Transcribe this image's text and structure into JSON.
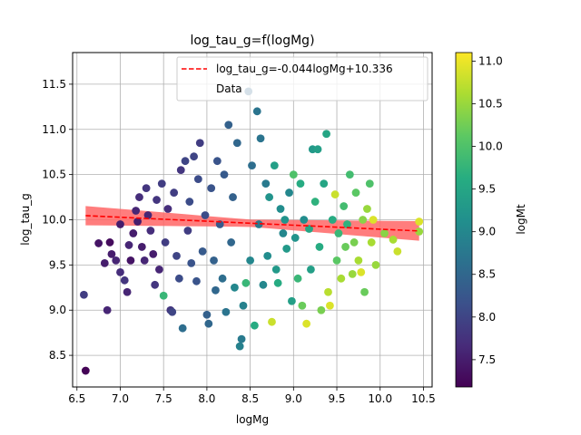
{
  "chart_data": {
    "type": "scatter",
    "title": "log_tau_g=f(logMg)",
    "xlabel": "logMg",
    "ylabel": "log_tau_g",
    "xlim": [
      6.45,
      10.6
    ],
    "ylim": [
      8.15,
      11.85
    ],
    "xticks": [
      "6.5",
      "7.0",
      "7.5",
      "8.0",
      "8.5",
      "9.0",
      "9.5",
      "10.0",
      "10.5"
    ],
    "yticks": [
      "8.5",
      "9.0",
      "9.5",
      "10.0",
      "10.5",
      "11.0",
      "11.5"
    ],
    "grid": true,
    "legend_position": "top-right",
    "fit_line": {
      "label": "log_tau_g=-0.044logMg+10.336",
      "slope": -0.044,
      "intercept": 10.336,
      "color": "#ff0000",
      "band_color": "#ff6666"
    },
    "scatter_label": "Data",
    "colorbar": {
      "label": "logMt",
      "min": 7.18,
      "max": 11.1,
      "ticks": [
        "7.5",
        "8.0",
        "8.5",
        "9.0",
        "9.5",
        "10.0",
        "10.5",
        "11.0"
      ],
      "colormap": "viridis"
    },
    "points": [
      [
        6.6,
        8.33,
        7.2
      ],
      [
        6.58,
        9.17,
        7.9
      ],
      [
        6.85,
        9.0,
        7.6
      ],
      [
        6.75,
        9.74,
        7.4
      ],
      [
        6.82,
        9.52,
        7.5
      ],
      [
        6.9,
        9.62,
        7.5
      ],
      [
        6.88,
        9.75,
        7.3
      ],
      [
        6.95,
        9.55,
        7.6
      ],
      [
        7.0,
        9.42,
        7.7
      ],
      [
        7.05,
        9.33,
        7.8
      ],
      [
        7.08,
        9.2,
        7.6
      ],
      [
        7.0,
        9.95,
        7.5
      ],
      [
        7.1,
        9.72,
        7.6
      ],
      [
        7.12,
        9.55,
        7.4
      ],
      [
        7.15,
        9.85,
        7.5
      ],
      [
        7.18,
        10.1,
        7.6
      ],
      [
        7.2,
        9.98,
        7.5
      ],
      [
        7.22,
        10.25,
        7.7
      ],
      [
        7.25,
        9.7,
        7.5
      ],
      [
        7.28,
        9.55,
        7.6
      ],
      [
        7.3,
        10.35,
        7.8
      ],
      [
        7.32,
        10.05,
        7.6
      ],
      [
        7.35,
        9.88,
        7.7
      ],
      [
        7.38,
        9.62,
        7.5
      ],
      [
        7.4,
        9.28,
        7.8
      ],
      [
        7.42,
        10.22,
        7.8
      ],
      [
        7.45,
        9.45,
        7.6
      ],
      [
        7.48,
        10.4,
        7.9
      ],
      [
        7.5,
        9.16,
        9.8
      ],
      [
        7.52,
        9.75,
        7.9
      ],
      [
        7.55,
        10.12,
        7.7
      ],
      [
        7.58,
        9.0,
        7.8
      ],
      [
        7.6,
        8.98,
        8.0
      ],
      [
        7.62,
        10.3,
        7.9
      ],
      [
        7.65,
        9.6,
        8.0
      ],
      [
        7.68,
        9.35,
        8.1
      ],
      [
        7.7,
        10.55,
        7.8
      ],
      [
        7.72,
        8.8,
        8.6
      ],
      [
        7.75,
        10.65,
        8.0
      ],
      [
        7.78,
        9.88,
        7.9
      ],
      [
        7.8,
        10.2,
        8.1
      ],
      [
        7.82,
        9.52,
        8.2
      ],
      [
        7.85,
        10.7,
        8.0
      ],
      [
        7.88,
        9.32,
        8.2
      ],
      [
        7.9,
        10.45,
        8.1
      ],
      [
        7.92,
        10.85,
        7.9
      ],
      [
        7.95,
        9.65,
        8.3
      ],
      [
        7.98,
        10.05,
        8.1
      ],
      [
        8.0,
        8.95,
        8.4
      ],
      [
        8.02,
        8.85,
        8.5
      ],
      [
        8.05,
        10.35,
        8.2
      ],
      [
        8.08,
        9.55,
        8.4
      ],
      [
        8.1,
        9.22,
        8.5
      ],
      [
        8.12,
        10.65,
        8.2
      ],
      [
        8.15,
        9.95,
        8.3
      ],
      [
        8.18,
        9.35,
        8.6
      ],
      [
        8.2,
        10.5,
        8.3
      ],
      [
        8.22,
        8.98,
        8.7
      ],
      [
        8.25,
        11.05,
        8.4
      ],
      [
        8.28,
        9.75,
        8.5
      ],
      [
        8.3,
        10.25,
        8.4
      ],
      [
        8.32,
        9.25,
        9.0
      ],
      [
        8.35,
        10.85,
        8.5
      ],
      [
        8.38,
        8.6,
        8.9
      ],
      [
        8.4,
        8.68,
        8.8
      ],
      [
        8.42,
        9.05,
        8.9
      ],
      [
        8.45,
        9.3,
        9.8
      ],
      [
        8.48,
        11.42,
        8.5
      ],
      [
        8.5,
        9.55,
        9.0
      ],
      [
        8.52,
        10.6,
        8.6
      ],
      [
        8.55,
        8.83,
        9.6
      ],
      [
        8.58,
        11.2,
        8.7
      ],
      [
        8.6,
        9.95,
        8.8
      ],
      [
        8.62,
        10.9,
        8.7
      ],
      [
        8.65,
        9.28,
        9.0
      ],
      [
        8.68,
        10.4,
        8.8
      ],
      [
        8.7,
        9.6,
        9.1
      ],
      [
        8.72,
        10.25,
        9.2
      ],
      [
        8.75,
        8.87,
        10.8
      ],
      [
        8.78,
        10.6,
        9.4
      ],
      [
        8.8,
        9.45,
        9.3
      ],
      [
        8.82,
        9.3,
        9.6
      ],
      [
        8.85,
        10.12,
        9.1
      ],
      [
        8.88,
        9.85,
        9.0
      ],
      [
        8.9,
        10.0,
        9.2
      ],
      [
        8.92,
        9.68,
        9.3
      ],
      [
        8.95,
        10.3,
        9.0
      ],
      [
        8.98,
        9.1,
        9.4
      ],
      [
        9.0,
        10.5,
        10.0
      ],
      [
        9.02,
        9.8,
        9.2
      ],
      [
        9.05,
        9.35,
        9.8
      ],
      [
        9.08,
        10.4,
        9.6
      ],
      [
        9.1,
        9.05,
        10.2
      ],
      [
        9.12,
        10.0,
        9.1
      ],
      [
        9.15,
        8.85,
        10.9
      ],
      [
        9.18,
        9.9,
        9.5
      ],
      [
        9.2,
        9.45,
        9.4
      ],
      [
        9.22,
        10.78,
        9.3
      ],
      [
        9.25,
        10.2,
        9.7
      ],
      [
        9.28,
        10.78,
        9.4
      ],
      [
        9.3,
        9.7,
        9.6
      ],
      [
        9.32,
        9.0,
        10.3
      ],
      [
        9.35,
        10.4,
        9.5
      ],
      [
        9.38,
        10.95,
        9.5
      ],
      [
        9.4,
        9.2,
        10.7
      ],
      [
        9.42,
        9.05,
        10.9
      ],
      [
        9.45,
        10.0,
        9.6
      ],
      [
        9.48,
        10.28,
        10.8
      ],
      [
        9.5,
        9.55,
        10.1
      ],
      [
        9.52,
        9.85,
        9.8
      ],
      [
        9.55,
        9.35,
        10.6
      ],
      [
        9.58,
        10.15,
        9.9
      ],
      [
        9.6,
        9.7,
        10.2
      ],
      [
        9.62,
        9.95,
        9.7
      ],
      [
        9.65,
        10.5,
        9.9
      ],
      [
        9.68,
        9.4,
        10.5
      ],
      [
        9.7,
        9.75,
        10.3
      ],
      [
        9.72,
        10.3,
        10.1
      ],
      [
        9.75,
        9.55,
        10.6
      ],
      [
        9.78,
        9.42,
        10.9
      ],
      [
        9.8,
        10.0,
        10.4
      ],
      [
        9.82,
        9.2,
        10.2
      ],
      [
        9.85,
        10.12,
        10.5
      ],
      [
        9.88,
        10.4,
        10.0
      ],
      [
        9.9,
        9.75,
        10.6
      ],
      [
        9.92,
        10.0,
        10.9
      ],
      [
        9.95,
        9.5,
        10.5
      ],
      [
        10.05,
        9.85,
        10.4
      ],
      [
        10.15,
        9.78,
        10.6
      ],
      [
        10.2,
        9.65,
        10.8
      ],
      [
        10.45,
        9.98,
        10.9
      ],
      [
        10.45,
        9.87,
        10.5
      ]
    ]
  }
}
